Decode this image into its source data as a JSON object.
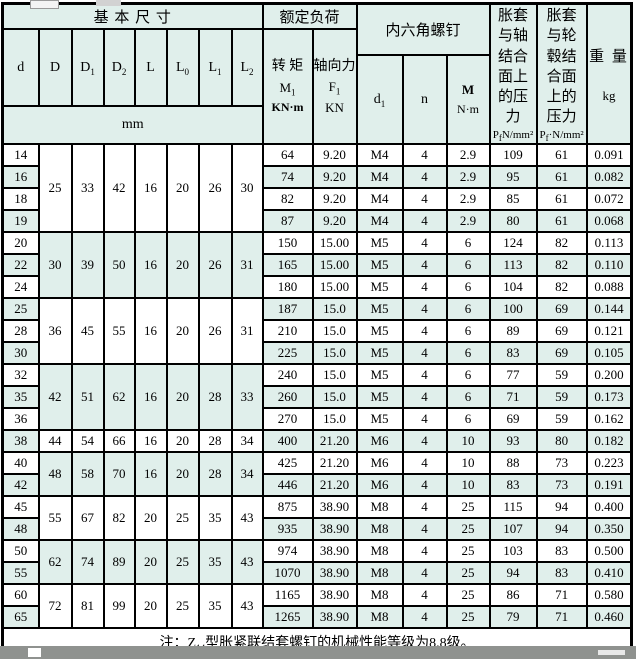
{
  "table": {
    "header": {
      "basic_dims": "基 本 尺 寸",
      "rated_load": "额定负荷",
      "hex_screw": "内六角螺钉",
      "dim_cols": [
        {
          "base": "d",
          "sub": ""
        },
        {
          "base": "D",
          "sub": ""
        },
        {
          "base": "D",
          "sub": "1"
        },
        {
          "base": "D",
          "sub": "2"
        },
        {
          "base": "L",
          "sub": ""
        },
        {
          "base": "L",
          "sub": "0"
        },
        {
          "base": "L",
          "sub": "1"
        },
        {
          "base": "L",
          "sub": "2"
        }
      ],
      "dim_unit": "mm",
      "torque": {
        "title": "转 矩",
        "sym": "M",
        "sym_sub": "1",
        "unit": "KN·m"
      },
      "axial": {
        "title": "轴向力",
        "sym": "F",
        "sym_sub": "1",
        "unit": "KN"
      },
      "screw_d": {
        "base": "d",
        "sub": "1"
      },
      "screw_n": "n",
      "screw_m": {
        "sym": "M",
        "unit": "N·m"
      },
      "shaft_pressure": {
        "text": "胀套与轴结合面上的压力",
        "p": "P",
        "p_sub": "f",
        "unit": "N/mm²"
      },
      "hub_pressure": {
        "text": "胀套与轮毂结合面上的压力",
        "p": "P",
        "p_sub": "f",
        "unit": "·N/mm²"
      },
      "weight": {
        "label": "重 量",
        "unit": "kg"
      }
    },
    "groups": [
      {
        "start": 0,
        "span": 4,
        "bg": "white",
        "dims": [
          "25",
          "33",
          "42",
          "16",
          "20",
          "26",
          "30"
        ]
      },
      {
        "start": 4,
        "span": 3,
        "bg": "tint",
        "dims": [
          "30",
          "39",
          "50",
          "16",
          "20",
          "26",
          "31"
        ]
      },
      {
        "start": 7,
        "span": 3,
        "bg": "white",
        "dims": [
          "36",
          "45",
          "55",
          "16",
          "20",
          "26",
          "31"
        ]
      },
      {
        "start": 10,
        "span": 3,
        "bg": "tint",
        "dims": [
          "42",
          "51",
          "62",
          "16",
          "20",
          "28",
          "33"
        ]
      },
      {
        "start": 13,
        "span": 1,
        "bg": "white",
        "dims": [
          "44",
          "54",
          "66",
          "16",
          "20",
          "28",
          "34"
        ]
      },
      {
        "start": 14,
        "span": 2,
        "bg": "tint",
        "dims": [
          "48",
          "58",
          "70",
          "16",
          "20",
          "28",
          "34"
        ]
      },
      {
        "start": 16,
        "span": 2,
        "bg": "white",
        "dims": [
          "55",
          "67",
          "82",
          "20",
          "25",
          "35",
          "43"
        ]
      },
      {
        "start": 18,
        "span": 2,
        "bg": "tint",
        "dims": [
          "62",
          "74",
          "89",
          "20",
          "25",
          "35",
          "43"
        ]
      },
      {
        "start": 20,
        "span": 2,
        "bg": "white",
        "dims": [
          "72",
          "81",
          "99",
          "20",
          "25",
          "35",
          "43"
        ]
      }
    ],
    "rows": [
      {
        "d": "14",
        "torque": "64",
        "axial": "9.20",
        "screw": "M4",
        "n": "4",
        "m": "2.9",
        "p_shaft": "109",
        "p_hub": "61",
        "weight": "0.091"
      },
      {
        "d": "16",
        "torque": "74",
        "axial": "9.20",
        "screw": "M4",
        "n": "4",
        "m": "2.9",
        "p_shaft": "95",
        "p_hub": "61",
        "weight": "0.082"
      },
      {
        "d": "18",
        "torque": "82",
        "axial": "9.20",
        "screw": "M4",
        "n": "4",
        "m": "2.9",
        "p_shaft": "85",
        "p_hub": "61",
        "weight": "0.072"
      },
      {
        "d": "19",
        "torque": "87",
        "axial": "9.20",
        "screw": "M4",
        "n": "4",
        "m": "2.9",
        "p_shaft": "80",
        "p_hub": "61",
        "weight": "0.068"
      },
      {
        "d": "20",
        "torque": "150",
        "axial": "15.00",
        "screw": "M5",
        "n": "4",
        "m": "6",
        "p_shaft": "124",
        "p_hub": "82",
        "weight": "0.113"
      },
      {
        "d": "22",
        "torque": "165",
        "axial": "15.00",
        "screw": "M5",
        "n": "4",
        "m": "6",
        "p_shaft": "113",
        "p_hub": "82",
        "weight": "0.110"
      },
      {
        "d": "24",
        "torque": "180",
        "axial": "15.00",
        "screw": "M5",
        "n": "4",
        "m": "6",
        "p_shaft": "104",
        "p_hub": "82",
        "weight": "0.088"
      },
      {
        "d": "25",
        "torque": "187",
        "axial": "15.0",
        "screw": "M5",
        "n": "4",
        "m": "6",
        "p_shaft": "100",
        "p_hub": "69",
        "weight": "0.144"
      },
      {
        "d": "28",
        "torque": "210",
        "axial": "15.0",
        "screw": "M5",
        "n": "4",
        "m": "6",
        "p_shaft": "89",
        "p_hub": "69",
        "weight": "0.121"
      },
      {
        "d": "30",
        "torque": "225",
        "axial": "15.0",
        "screw": "M5",
        "n": "4",
        "m": "6",
        "p_shaft": "83",
        "p_hub": "69",
        "weight": "0.105"
      },
      {
        "d": "32",
        "torque": "240",
        "axial": "15.0",
        "screw": "M5",
        "n": "4",
        "m": "6",
        "p_shaft": "77",
        "p_hub": "59",
        "weight": "0.200"
      },
      {
        "d": "35",
        "torque": "260",
        "axial": "15.0",
        "screw": "M5",
        "n": "4",
        "m": "6",
        "p_shaft": "71",
        "p_hub": "59",
        "weight": "0.173"
      },
      {
        "d": "36",
        "torque": "270",
        "axial": "15.0",
        "screw": "M5",
        "n": "4",
        "m": "6",
        "p_shaft": "69",
        "p_hub": "59",
        "weight": "0.162"
      },
      {
        "d": "38",
        "torque": "400",
        "axial": "21.20",
        "screw": "M6",
        "n": "4",
        "m": "10",
        "p_shaft": "93",
        "p_hub": "80",
        "weight": "0.182"
      },
      {
        "d": "40",
        "torque": "425",
        "axial": "21.20",
        "screw": "M6",
        "n": "4",
        "m": "10",
        "p_shaft": "88",
        "p_hub": "73",
        "weight": "0.223"
      },
      {
        "d": "42",
        "torque": "446",
        "axial": "21.20",
        "screw": "M6",
        "n": "4",
        "m": "10",
        "p_shaft": "83",
        "p_hub": "73",
        "weight": "0.191"
      },
      {
        "d": "45",
        "torque": "875",
        "axial": "38.90",
        "screw": "M8",
        "n": "4",
        "m": "25",
        "p_shaft": "115",
        "p_hub": "94",
        "weight": "0.400"
      },
      {
        "d": "48",
        "torque": "935",
        "axial": "38.90",
        "screw": "M8",
        "n": "4",
        "m": "25",
        "p_shaft": "107",
        "p_hub": "94",
        "weight": "0.350"
      },
      {
        "d": "50",
        "torque": "974",
        "axial": "38.90",
        "screw": "M8",
        "n": "4",
        "m": "25",
        "p_shaft": "103",
        "p_hub": "83",
        "weight": "0.500"
      },
      {
        "d": "55",
        "torque": "1070",
        "axial": "38.90",
        "screw": "M8",
        "n": "4",
        "m": "25",
        "p_shaft": "94",
        "p_hub": "83",
        "weight": "0.410"
      },
      {
        "d": "60",
        "torque": "1165",
        "axial": "38.90",
        "screw": "M8",
        "n": "4",
        "m": "25",
        "p_shaft": "86",
        "p_hub": "71",
        "weight": "0.580"
      },
      {
        "d": "65",
        "torque": "1265",
        "axial": "38.90",
        "screw": "M8",
        "n": "4",
        "m": "25",
        "p_shaft": "79",
        "p_hub": "71",
        "weight": "0.460"
      }
    ],
    "note": {
      "prefix": "注：Z",
      "sub": "14",
      "suffix": "型胀紧联结套螺钉的机械性能等级为8.8级。"
    }
  },
  "colors": {
    "tint": "#e0efeb",
    "border": "#000000",
    "strip": "#8f928f"
  }
}
